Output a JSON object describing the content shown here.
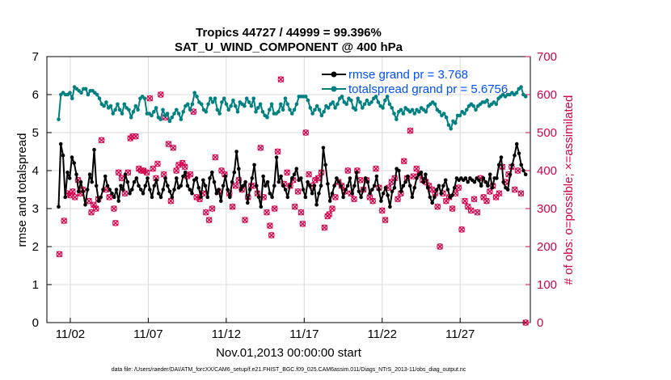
{
  "chart_data": {
    "type": "line",
    "title_line1": "Tropics 44727 / 44999 = 99.396%",
    "title_line2": "SAT_U_WIND_COMPONENT @ 400 hPa",
    "xlabel": "Nov.01,2013 00:00:00 start",
    "ylabel_left": "rmse and totalspread",
    "ylabel_right": "# of obs: o=possible; ×=assimilated",
    "footer": "data file: /Users/raeder/DAI/ATM_forcXX/CAM6_setup/f.e21.FHIST_BGC.f09_025.CAM6assim.011/Diags_NTrS_2013-11/obs_diag_output.nc",
    "xlim": [
      0.5,
      31.5
    ],
    "ylim_left": [
      0,
      7
    ],
    "ylim_right": [
      0,
      700
    ],
    "xticks": [
      {
        "x": 2,
        "label": "11/02"
      },
      {
        "x": 7,
        "label": "11/07"
      },
      {
        "x": 12,
        "label": "11/12"
      },
      {
        "x": 17,
        "label": "11/17"
      },
      {
        "x": 22,
        "label": "11/22"
      },
      {
        "x": 27,
        "label": "11/27"
      }
    ],
    "yticks_left": [
      "0",
      "1",
      "2",
      "3",
      "4",
      "5",
      "6",
      "7"
    ],
    "yticks_right": [
      "0",
      "100",
      "200",
      "300",
      "400",
      "500",
      "600",
      "700"
    ],
    "colors": {
      "rmse": "#000000",
      "spread": "#008080",
      "obs": "#d6004e",
      "legend_text": "#0050ff"
    },
    "series": [
      {
        "name": "rmse grand pr = 3.768",
        "axis": "left",
        "values": [
          3.05,
          4.7,
          4.4,
          3.3,
          3.95,
          3.8,
          4.35,
          4.2,
          3.9,
          3.45,
          3.7,
          3.45,
          3.1,
          3.5,
          3.9,
          3.7,
          4.55,
          3.6,
          3.2,
          3.3,
          3.5,
          3.85,
          3.6,
          3.5,
          3.4,
          3.3,
          3.5,
          3.2,
          3.6,
          3.5,
          3.9,
          3.7,
          3.4,
          3.5,
          3.7,
          3.8,
          3.6,
          3.5,
          3.4,
          3.6,
          3.8,
          3.5,
          3.3,
          3.6,
          3.75,
          3.4,
          3.3,
          3.5,
          3.8,
          3.6,
          3.45,
          3.3,
          3.5,
          3.8,
          3.55,
          3.6,
          3.85,
          3.95,
          3.6,
          3.5,
          3.4,
          3.75,
          3.8,
          3.55,
          3.3,
          3.75,
          3.6,
          3.3,
          3.8,
          3.95,
          3.7,
          3.4,
          3.5,
          3.2,
          3.6,
          3.85,
          3.5,
          3.3,
          3.7,
          3.95,
          4.5,
          4.05,
          3.5,
          3.6,
          3.7,
          3.15,
          3.5,
          3.8,
          4.15,
          3.6,
          3.3,
          3.05,
          3.85,
          3.6,
          3.7,
          3.4,
          3.3,
          3.6,
          4.35,
          3.7,
          3.85,
          3.6,
          3.5,
          3.3,
          3.6,
          3.8,
          3.9,
          4.05,
          3.75,
          3.8,
          3.5,
          3.3,
          3.7,
          3.6,
          3.4,
          3.6,
          3.1,
          3.4,
          3.6,
          4.6,
          4.15,
          3.65,
          3.2,
          3.4,
          3.6,
          3.8,
          3.7,
          3.6,
          3.3,
          3.5,
          3.6,
          3.8,
          3.4,
          3.6,
          3.95,
          3.45,
          3.3,
          3.5,
          3.8,
          3.7,
          3.4,
          3.5,
          3.6,
          3.85,
          3.5,
          3.2,
          3.4,
          3.55,
          3.35,
          3.05,
          3.45,
          3.55,
          4.05,
          4.0,
          3.45,
          3.6,
          3.7,
          3.85,
          3.6,
          3.3,
          3.55,
          3.8,
          3.9,
          3.95,
          3.7,
          3.9,
          3.55,
          3.3,
          3.15,
          3.3,
          3.5,
          3.6,
          3.4,
          3.6,
          3.75,
          3.5,
          3.3,
          3.35,
          3.55,
          3.8,
          3.75,
          3.8,
          3.75,
          3.8,
          3.7,
          3.8,
          3.75,
          3.7,
          3.8,
          3.75,
          3.6,
          3.8,
          3.7,
          3.6,
          3.9,
          3.55,
          3.8,
          3.8,
          4.15,
          4.35,
          3.7,
          3.55,
          3.5,
          3.9,
          4.15,
          4.4,
          4.7,
          4.45,
          4.15,
          4.0,
          3.9
        ]
      },
      {
        "name": "totalspread grand pr = 5.6756",
        "axis": "left",
        "values": [
          5.35,
          6.0,
          6.05,
          6.0,
          6.0,
          6.05,
          5.9,
          6.2,
          6.15,
          6.1,
          6.05,
          6.15,
          6.15,
          6.0,
          6.1,
          6.1,
          6.05,
          6.0,
          5.9,
          5.75,
          5.7,
          5.8,
          5.65,
          5.7,
          5.5,
          5.6,
          5.75,
          5.6,
          5.5,
          5.75,
          5.65,
          5.6,
          5.4,
          5.55,
          5.7,
          5.6,
          5.9,
          5.95,
          5.9,
          5.5,
          5.5,
          5.45,
          5.55,
          5.65,
          5.4,
          5.35,
          5.6,
          5.45,
          5.5,
          5.3,
          5.4,
          5.5,
          5.6,
          5.5,
          5.35,
          5.55,
          5.7,
          5.75,
          5.6,
          5.75,
          6.05,
          5.95,
          5.8,
          5.75,
          5.6,
          5.55,
          5.75,
          5.9,
          5.8,
          5.9,
          5.6,
          5.5,
          5.8,
          5.9,
          5.75,
          5.6,
          5.7,
          5.85,
          5.7,
          5.55,
          5.8,
          5.75,
          5.7,
          5.9,
          5.8,
          5.7,
          5.9,
          5.55,
          5.65,
          5.75,
          5.55,
          5.45,
          5.4,
          5.6,
          5.75,
          5.5,
          5.5,
          5.55,
          5.75,
          5.6,
          5.9,
          5.75,
          5.6,
          5.5,
          5.6,
          5.75,
          5.95,
          5.95,
          5.95,
          5.95,
          5.85,
          5.65,
          5.5,
          5.6,
          5.7,
          5.6,
          5.45,
          5.55,
          5.7,
          5.65,
          5.75,
          5.8,
          5.65,
          5.75,
          5.9,
          5.95,
          5.8,
          5.75,
          5.9,
          5.85,
          5.65,
          5.6,
          5.9,
          5.8,
          5.65,
          5.75,
          5.85,
          5.75,
          5.8,
          5.9,
          5.95,
          5.8,
          5.7,
          5.65,
          5.85,
          5.95,
          5.75,
          5.65,
          5.5,
          5.35,
          5.55,
          5.6,
          5.5,
          5.65,
          5.6,
          5.55,
          5.6,
          5.5,
          5.6,
          5.55,
          5.65,
          5.6,
          5.55,
          5.7,
          5.75,
          5.8,
          5.75,
          5.6,
          5.55,
          5.45,
          5.5,
          5.4,
          5.2,
          5.1,
          5.3,
          5.25,
          5.45,
          5.45,
          5.55,
          5.5,
          5.6,
          5.7,
          5.75,
          5.7,
          5.6,
          5.7,
          5.75,
          5.8,
          5.8,
          5.85,
          5.7,
          5.75,
          5.8,
          5.75,
          5.9,
          5.95,
          6.0,
          5.95,
          6.0,
          6.0,
          6.05,
          6.0,
          6.05,
          6.15,
          6.2,
          6.0,
          5.95
        ]
      }
    ],
    "obs_assimilated": [
      [
        1.3,
        180
      ],
      [
        1.6,
        268
      ],
      [
        1.8,
        340
      ],
      [
        2.0,
        335
      ],
      [
        2.15,
        345
      ],
      [
        2.3,
        330
      ],
      [
        2.5,
        375
      ],
      [
        2.65,
        340
      ],
      [
        2.8,
        350
      ],
      [
        3.2,
        320
      ],
      [
        3.35,
        290
      ],
      [
        3.5,
        310
      ],
      [
        3.65,
        300
      ],
      [
        3.8,
        325
      ],
      [
        4.0,
        480
      ],
      [
        4.3,
        350
      ],
      [
        4.5,
        330
      ],
      [
        4.8,
        300
      ],
      [
        4.9,
        262
      ],
      [
        5.1,
        395
      ],
      [
        5.3,
        380
      ],
      [
        5.5,
        340
      ],
      [
        5.7,
        395
      ],
      [
        5.85,
        485
      ],
      [
        6.0,
        490
      ],
      [
        6.2,
        490
      ],
      [
        6.4,
        405
      ],
      [
        6.55,
        400
      ],
      [
        6.7,
        400
      ],
      [
        6.9,
        395
      ],
      [
        7.1,
        590
      ],
      [
        7.3,
        405
      ],
      [
        7.5,
        380
      ],
      [
        7.6,
        418
      ],
      [
        7.8,
        600
      ],
      [
        8.0,
        390
      ],
      [
        8.1,
        540
      ],
      [
        8.3,
        470
      ],
      [
        8.45,
        320
      ],
      [
        8.6,
        460
      ],
      [
        8.8,
        400
      ],
      [
        8.95,
        415
      ],
      [
        9.2,
        420
      ],
      [
        9.35,
        410
      ],
      [
        9.5,
        385
      ],
      [
        9.7,
        390
      ],
      [
        9.9,
        555
      ],
      [
        10.1,
        330
      ],
      [
        10.3,
        325
      ],
      [
        10.5,
        340
      ],
      [
        10.7,
        290
      ],
      [
        10.9,
        270
      ],
      [
        11.1,
        300
      ],
      [
        11.3,
        435
      ],
      [
        11.5,
        345
      ],
      [
        11.7,
        400
      ],
      [
        11.9,
        390
      ],
      [
        12.2,
        340
      ],
      [
        12.4,
        305
      ],
      [
        12.6,
        360
      ],
      [
        12.8,
        375
      ],
      [
        13.0,
        350
      ],
      [
        13.2,
        270
      ],
      [
        13.4,
        330
      ],
      [
        13.6,
        360
      ],
      [
        13.8,
        360
      ],
      [
        14.0,
        340
      ],
      [
        14.2,
        460
      ],
      [
        14.4,
        330
      ],
      [
        14.6,
        290
      ],
      [
        14.8,
        255
      ],
      [
        14.9,
        230
      ],
      [
        15.1,
        300
      ],
      [
        15.3,
        450
      ],
      [
        15.5,
        640
      ],
      [
        15.7,
        365
      ],
      [
        15.9,
        395
      ],
      [
        16.1,
        360
      ],
      [
        16.3,
        375
      ],
      [
        16.4,
        305
      ],
      [
        16.6,
        345
      ],
      [
        16.8,
        290
      ],
      [
        16.9,
        260
      ],
      [
        17.1,
        500
      ],
      [
        17.3,
        390
      ],
      [
        17.5,
        360
      ],
      [
        17.7,
        375
      ],
      [
        17.9,
        380
      ],
      [
        18.1,
        395
      ],
      [
        18.3,
        250
      ],
      [
        18.5,
        280
      ],
      [
        18.6,
        285
      ],
      [
        18.8,
        300
      ],
      [
        19.0,
        330
      ],
      [
        19.2,
        370
      ],
      [
        19.4,
        360
      ],
      [
        19.6,
        345
      ],
      [
        19.8,
        400
      ],
      [
        20.0,
        340
      ],
      [
        20.2,
        325
      ],
      [
        20.4,
        400
      ],
      [
        20.6,
        375
      ],
      [
        20.8,
        350
      ],
      [
        21.0,
        375
      ],
      [
        21.2,
        330
      ],
      [
        21.4,
        320
      ],
      [
        21.6,
        405
      ],
      [
        21.8,
        355
      ],
      [
        22.0,
        295
      ],
      [
        22.2,
        270
      ],
      [
        22.4,
        355
      ],
      [
        22.6,
        370
      ],
      [
        22.8,
        380
      ],
      [
        23.0,
        325
      ],
      [
        23.2,
        340
      ],
      [
        23.4,
        425
      ],
      [
        23.6,
        380
      ],
      [
        23.8,
        505
      ],
      [
        24.0,
        385
      ],
      [
        24.2,
        405
      ],
      [
        24.4,
        390
      ],
      [
        24.6,
        375
      ],
      [
        24.8,
        370
      ],
      [
        25.0,
        360
      ],
      [
        25.2,
        350
      ],
      [
        25.4,
        340
      ],
      [
        25.55,
        305
      ],
      [
        25.7,
        200
      ],
      [
        25.9,
        340
      ],
      [
        26.1,
        320
      ],
      [
        26.3,
        330
      ],
      [
        26.5,
        300
      ],
      [
        26.7,
        340
      ],
      [
        26.9,
        355
      ],
      [
        27.1,
        245
      ],
      [
        27.3,
        320
      ],
      [
        27.5,
        305
      ],
      [
        27.7,
        295
      ],
      [
        27.9,
        325
      ],
      [
        28.1,
        290
      ],
      [
        28.3,
        380
      ],
      [
        28.5,
        330
      ],
      [
        28.7,
        320
      ],
      [
        28.9,
        345
      ],
      [
        29.1,
        360
      ],
      [
        29.3,
        330
      ],
      [
        29.5,
        340
      ],
      [
        29.7,
        410
      ],
      [
        29.9,
        370
      ],
      [
        30.1,
        390
      ],
      [
        30.3,
        410
      ],
      [
        30.5,
        350
      ],
      [
        30.7,
        400
      ],
      [
        30.9,
        340
      ],
      [
        31.2,
        0
      ]
    ]
  },
  "legend": [
    {
      "label": "rmse grand pr = 3.768"
    },
    {
      "label": "totalspread grand pr = 5.6756"
    }
  ]
}
